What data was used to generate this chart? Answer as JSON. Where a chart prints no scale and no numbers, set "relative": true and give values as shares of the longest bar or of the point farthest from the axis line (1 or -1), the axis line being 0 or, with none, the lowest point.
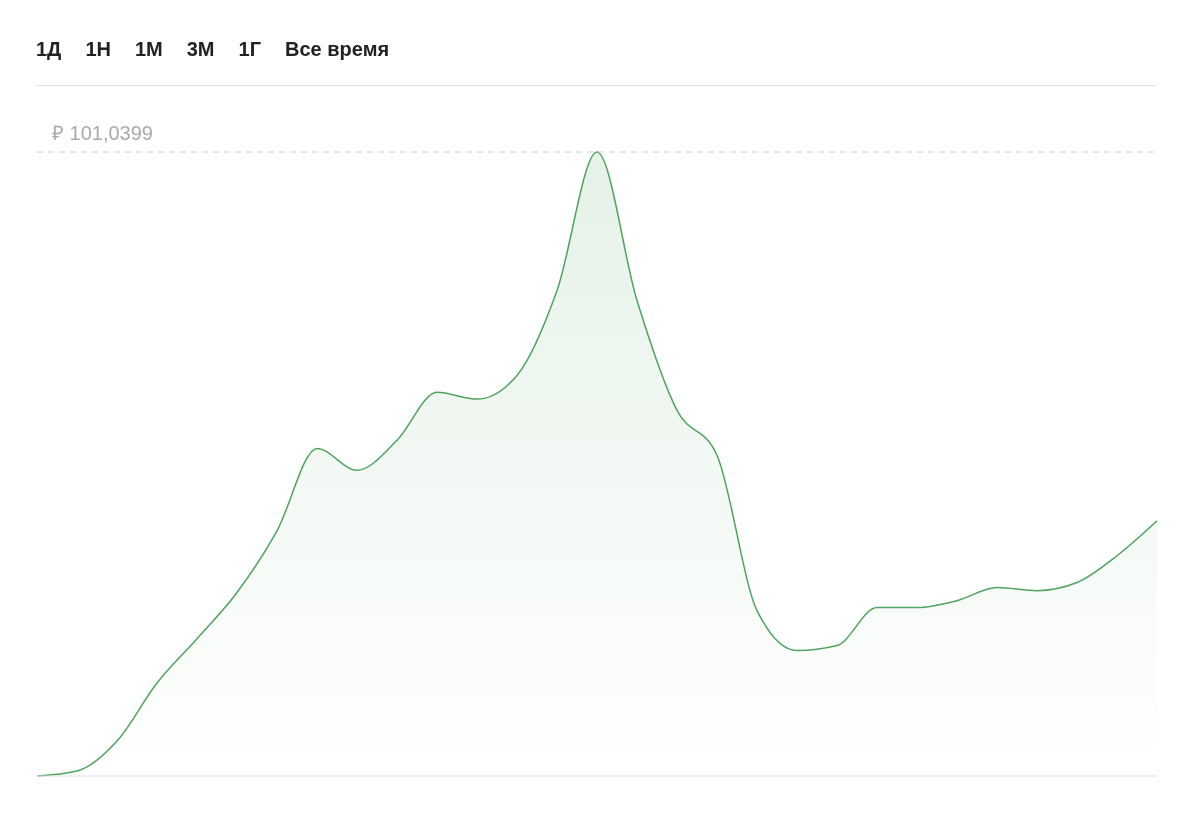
{
  "chart_data": {
    "type": "area",
    "relative": true,
    "categories": [
      null,
      null,
      null,
      null,
      null,
      null,
      null,
      null,
      null,
      null,
      null,
      null,
      null,
      null,
      null,
      null,
      null,
      null,
      null,
      null,
      null,
      null,
      null,
      null,
      null,
      null,
      null,
      null,
      null
    ],
    "values": [
      0,
      0.008,
      0.056,
      0.149,
      0.22,
      0.294,
      0.393,
      0.525,
      0.49,
      0.538,
      0.615,
      0.604,
      0.642,
      0.778,
      1,
      0.762,
      0.586,
      0.514,
      0.265,
      0.201,
      0.209,
      0.27,
      0.27,
      0.281,
      0.302,
      0.297,
      0.31,
      0.353,
      0.409
    ],
    "color": "#4fa35f",
    "ref_lines": [
      {
        "axis": "y",
        "value": 1,
        "label": "₽ 101,0399",
        "color": "#cccccc",
        "line_style": "dashed"
      }
    ],
    "annotations": [
      "1Д",
      "1Н",
      "1М",
      "3М",
      "1Г",
      "Все время"
    ]
  }
}
